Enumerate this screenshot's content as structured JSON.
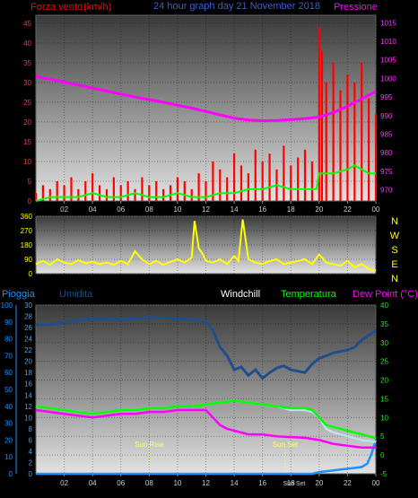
{
  "header": {
    "left_title": "Forza vento",
    "left_unit": "(km/h)",
    "center_title": "24 hour graph day 21 November 2018",
    "right_title": "Pressione"
  },
  "colors": {
    "wind": "#ff0000",
    "wind_avg": "#00ff00",
    "pressure": "#ff00ff",
    "direction": "#ffff00",
    "rain": "#1e90ff",
    "humidity": "#1e4f8c",
    "windchill": "#bfe0ea",
    "temperature": "#00ff00",
    "dewpoint": "#ff00ff",
    "sun": "#ffff66",
    "axis_text": "#cccccc"
  },
  "bottom_legend": {
    "rain": "Pioggia",
    "humidity": "Umidita",
    "windchill": "Windchill",
    "temperature": "Temperatura",
    "dewpoint": "Dew Point (°C)"
  },
  "annotations": {
    "sunrise": "Sun Rise",
    "sunset": "Sun Set",
    "sunset_short": "Sun Set",
    "sunrise_hour": 8.0,
    "sunset_hour": 17.6
  },
  "direction_letters": [
    "N",
    "W",
    "S",
    "E",
    "N"
  ],
  "chart_data": [
    {
      "type": "line",
      "title": "24 hour graph day 21 November 2018",
      "x_ticks": [
        "02",
        "04",
        "06",
        "08",
        "10",
        "12",
        "14",
        "16",
        "18",
        "20",
        "22",
        "00"
      ],
      "xlim": [
        0,
        24
      ],
      "left_axis": {
        "label": "Forza vento (km/h)",
        "ticks": [
          0,
          5,
          10,
          15,
          20,
          25,
          30,
          35,
          40,
          45
        ],
        "ylim": [
          0,
          47
        ]
      },
      "right_axis": {
        "label": "Pressione",
        "ticks": [
          970,
          975,
          980,
          985,
          990,
          995,
          1000,
          1005,
          1010,
          1015
        ],
        "ylim": [
          967,
          1017
        ]
      },
      "series": [
        {
          "name": "Forza vento",
          "axis": "left",
          "style": "spikes",
          "x": [
            0,
            0.5,
            1,
            1.5,
            2,
            2.5,
            3,
            3.5,
            4,
            4.5,
            5,
            5.5,
            6,
            6.5,
            7,
            7.5,
            8,
            8.5,
            9,
            9.5,
            10,
            10.5,
            11,
            11.5,
            12,
            12.5,
            13,
            13.5,
            14,
            14.5,
            15,
            15.5,
            16,
            16.5,
            17,
            17.5,
            18,
            18.5,
            19,
            19.5,
            20,
            20.2,
            20.5,
            21,
            21.5,
            22,
            22.5,
            23,
            23.5,
            24
          ],
          "y": [
            2,
            4,
            3,
            5,
            4,
            6,
            3,
            5,
            7,
            4,
            3,
            6,
            4,
            5,
            3,
            6,
            4,
            5,
            3,
            4,
            6,
            5,
            3,
            7,
            5,
            10,
            8,
            6,
            12,
            9,
            7,
            13,
            10,
            12,
            8,
            14,
            9,
            11,
            13,
            10,
            44,
            38,
            30,
            35,
            28,
            32,
            30,
            35,
            26,
            22
          ]
        },
        {
          "name": "Raffica media",
          "axis": "left",
          "style": "line",
          "x": [
            0,
            1,
            2,
            3,
            4,
            5,
            6,
            7,
            8,
            9,
            10,
            11,
            12,
            13,
            14,
            15,
            16,
            17,
            18,
            19,
            19.8,
            20,
            21,
            22,
            22.5,
            23,
            23.5,
            24
          ],
          "y": [
            0,
            1,
            1,
            1,
            2,
            1,
            1,
            2,
            1,
            1,
            2,
            1,
            1,
            2,
            2,
            3,
            3,
            4,
            3,
            3,
            3,
            7,
            7,
            8,
            9,
            8,
            7,
            7
          ]
        },
        {
          "name": "Pressione",
          "axis": "right",
          "style": "line",
          "x": [
            0,
            1,
            2,
            3,
            4,
            5,
            6,
            7,
            8,
            9,
            10,
            11,
            12,
            13,
            14,
            15,
            16,
            17,
            18,
            19,
            20,
            21,
            22,
            23,
            24
          ],
          "y": [
            1000.5,
            999.8,
            999,
            998.2,
            997.4,
            996.6,
            995.8,
            995,
            994.3,
            993.6,
            992.8,
            992,
            991.1,
            990.2,
            989.3,
            988.8,
            988.6,
            988.7,
            988.9,
            989.2,
            989.6,
            990.8,
            992.5,
            994.5,
            996.5
          ]
        }
      ]
    },
    {
      "type": "line",
      "title": "",
      "x_ticks": [
        "02",
        "04",
        "06",
        "08",
        "10",
        "12",
        "14",
        "16",
        "18",
        "20",
        "22",
        "00"
      ],
      "xlim": [
        0,
        24
      ],
      "left_axis": {
        "label": "",
        "ticks": [
          0,
          90,
          180,
          270,
          360
        ],
        "ylim": [
          0,
          360
        ]
      },
      "series": [
        {
          "name": "Direzione vento",
          "axis": "left",
          "style": "line",
          "x": [
            0,
            0.5,
            1,
            1.5,
            2,
            2.5,
            3,
            3.5,
            4,
            4.5,
            5,
            5.5,
            6,
            6.5,
            7,
            7.5,
            8,
            8.5,
            9,
            9.5,
            10,
            10.5,
            11,
            11.2,
            11.5,
            11.8,
            12,
            12.5,
            13,
            13.5,
            14,
            14.3,
            14.6,
            15,
            15.5,
            16,
            16.5,
            17,
            17.5,
            18,
            18.5,
            19,
            19.5,
            20,
            20.5,
            21,
            21.5,
            22,
            22.5,
            23,
            23.5,
            24
          ],
          "y": [
            60,
            80,
            55,
            90,
            70,
            60,
            85,
            65,
            75,
            60,
            70,
            55,
            80,
            60,
            140,
            90,
            60,
            80,
            55,
            75,
            90,
            70,
            100,
            330,
            160,
            120,
            80,
            70,
            90,
            60,
            110,
            80,
            340,
            90,
            70,
            60,
            80,
            90,
            60,
            70,
            80,
            90,
            60,
            120,
            70,
            60,
            50,
            80,
            40,
            60,
            30,
            20
          ]
        }
      ]
    },
    {
      "type": "line",
      "title": "",
      "x_ticks": [
        "02",
        "04",
        "06",
        "08",
        "10",
        "12",
        "14",
        "16",
        "18",
        "20",
        "22",
        "00"
      ],
      "xlim": [
        0,
        24
      ],
      "left_axis_outer": {
        "label": "Pioggia",
        "ticks": [
          0,
          10,
          20,
          30,
          40,
          50,
          60,
          70,
          80,
          90,
          100
        ],
        "ylim": [
          0,
          100
        ]
      },
      "left_axis_inner": {
        "label": "Umidita",
        "ticks": [
          0,
          2,
          4,
          6,
          8,
          10,
          12,
          14,
          16,
          18,
          20,
          22,
          24,
          26,
          28,
          30
        ],
        "ylim": [
          0,
          30
        ]
      },
      "right_axis": {
        "label": "Dew Point (°C)",
        "ticks": [
          -5,
          0,
          5,
          10,
          15,
          20,
          25,
          30,
          35,
          40
        ],
        "ylim": [
          -5,
          40
        ]
      },
      "series": [
        {
          "name": "Pioggia",
          "axis": "left_outer",
          "style": "line",
          "x": [
            0,
            2,
            4,
            6,
            8,
            10,
            12,
            14,
            16,
            18,
            19.5,
            20,
            21,
            22,
            23,
            23.4,
            23.7,
            24
          ],
          "y": [
            0,
            0,
            0,
            0,
            0,
            0,
            0,
            0,
            0,
            0,
            0,
            1,
            2,
            3,
            4,
            6,
            12,
            20
          ]
        },
        {
          "name": "Umidita",
          "axis": "left_inner",
          "style": "line",
          "x": [
            0,
            1,
            2,
            3,
            4,
            5,
            6,
            7,
            8,
            9,
            10,
            11,
            11.5,
            12,
            12.5,
            13,
            13.5,
            14,
            14.5,
            15,
            15.5,
            16,
            16.5,
            17,
            17.5,
            18,
            19,
            19.5,
            20,
            21,
            22,
            22.5,
            23,
            24
          ],
          "y": [
            26.5,
            26.5,
            27,
            27.3,
            27.6,
            27.5,
            27.4,
            27.6,
            27.8,
            27.7,
            27.6,
            27.5,
            27.3,
            27,
            25.5,
            22.5,
            21,
            18.5,
            19,
            17.5,
            18.5,
            17,
            18,
            18.8,
            19.2,
            18.5,
            18,
            19.5,
            20.5,
            21.5,
            22,
            22.5,
            23.8,
            25.5
          ]
        },
        {
          "name": "Windchill",
          "axis": "right",
          "style": "line",
          "x": [
            0,
            1,
            2,
            3,
            4,
            5,
            6,
            7,
            8,
            9,
            10,
            11,
            12,
            13,
            14,
            15,
            16,
            17,
            18,
            19,
            19.5,
            20,
            20.5,
            21,
            22,
            23,
            24
          ],
          "y": [
            13,
            12.5,
            12,
            11.5,
            11,
            11.5,
            12,
            12,
            12.5,
            12.5,
            13,
            13,
            13.5,
            14,
            14.5,
            14,
            13.5,
            13,
            12,
            12,
            11.5,
            10,
            7,
            6,
            5,
            4,
            3.5
          ]
        },
        {
          "name": "Temperatura",
          "axis": "right",
          "style": "line",
          "x": [
            0,
            1,
            2,
            3,
            4,
            5,
            6,
            7,
            8,
            9,
            10,
            11,
            12,
            13,
            14,
            15,
            16,
            17,
            18,
            19,
            19.5,
            20,
            20.5,
            21,
            22,
            23,
            24
          ],
          "y": [
            13,
            12.5,
            12,
            11.5,
            11,
            11.5,
            12,
            12,
            12.5,
            12.5,
            13,
            13,
            13.5,
            14,
            14.5,
            14,
            13.5,
            13,
            12.5,
            12.5,
            12,
            10,
            8,
            7.5,
            6.5,
            5.5,
            4.5
          ]
        },
        {
          "name": "Dew Point",
          "axis": "right",
          "style": "line",
          "x": [
            0,
            1,
            2,
            3,
            4,
            5,
            6,
            7,
            8,
            9,
            10,
            11,
            12,
            12.5,
            13,
            13.5,
            14,
            14.5,
            15,
            16,
            17,
            18,
            19,
            20,
            21,
            22,
            23,
            24
          ],
          "y": [
            12,
            11.5,
            11,
            10.5,
            10,
            10.5,
            11,
            11,
            11.5,
            11.5,
            12,
            12,
            12,
            10,
            8,
            7,
            6.5,
            6,
            5.5,
            5.5,
            5,
            4.8,
            4.6,
            4,
            3,
            2.5,
            2,
            2
          ]
        }
      ]
    }
  ]
}
